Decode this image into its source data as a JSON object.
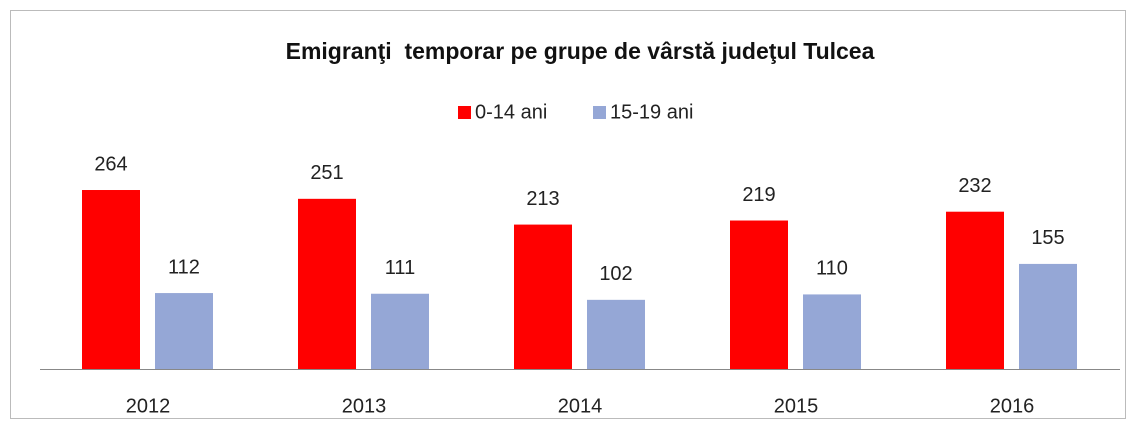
{
  "chart_data": {
    "type": "bar",
    "title": "Emigranţi  temporar pe grupe de vârstă judeţul Tulcea",
    "categories": [
      "2012",
      "2013",
      "2014",
      "2015",
      "2016"
    ],
    "series": [
      {
        "name": "0-14 ani",
        "color": "#ff0000",
        "values": [
          264,
          251,
          213,
          219,
          232
        ]
      },
      {
        "name": "15-19 ani",
        "color": "#95a7d6",
        "values": [
          112,
          111,
          102,
          110,
          155
        ]
      }
    ],
    "legend": "top"
  }
}
